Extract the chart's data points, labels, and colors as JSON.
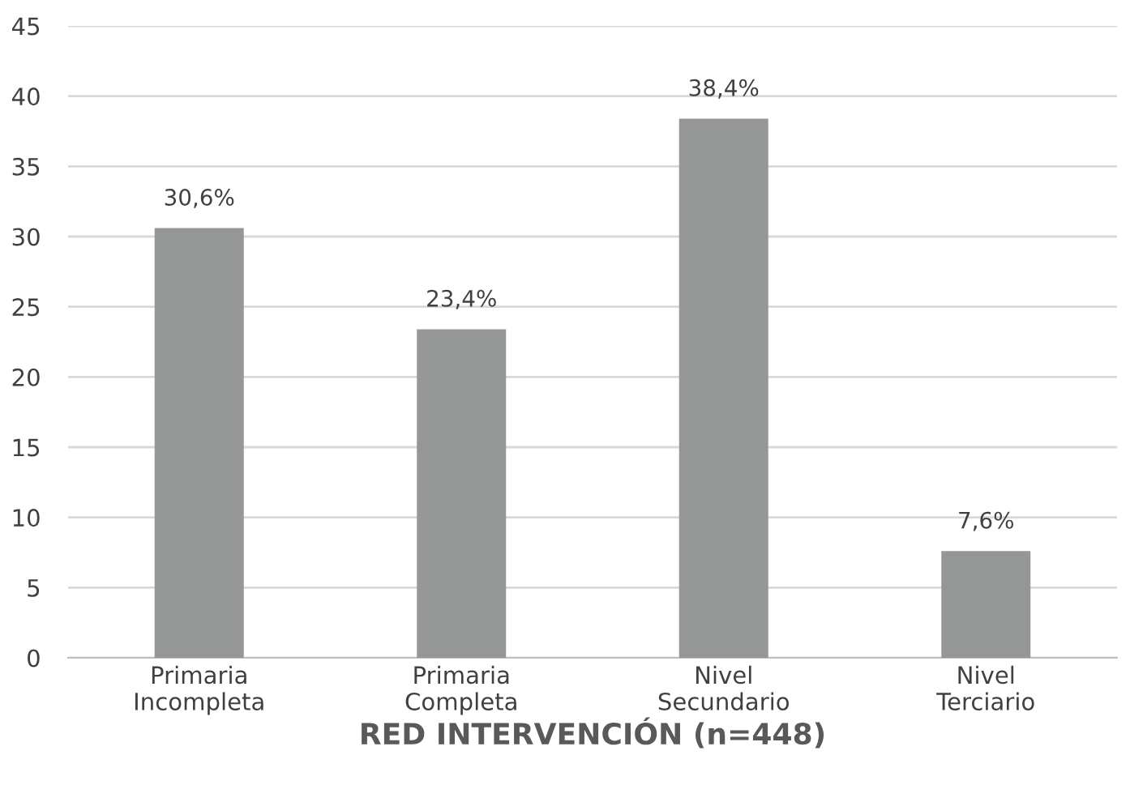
{
  "chart_data": {
    "type": "bar",
    "xlabel": "RED INTERVENCIÓN (n=448)",
    "categories": [
      "Primaria\nIncompleta",
      "Primaria\nCompleta",
      "Nivel\nSecundario",
      "Nivel\nTerciario"
    ],
    "values": [
      30.6,
      23.4,
      38.4,
      7.6
    ],
    "value_labels": [
      "30,6%",
      "23,4%",
      "38,4%",
      "7,6%"
    ],
    "color": "#959797",
    "ylim": [
      0,
      45
    ],
    "yticks": [
      0,
      5,
      10,
      15,
      20,
      25,
      30,
      35,
      40,
      45
    ],
    "grid": "y"
  }
}
